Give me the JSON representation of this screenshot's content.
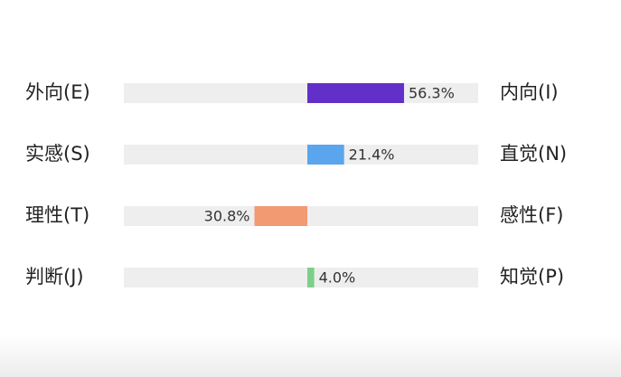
{
  "chart_data": {
    "type": "diverging-bar",
    "left_labels": [
      "外向(E)",
      "实感(S)",
      "理性(T)",
      "判断(J)"
    ],
    "right_labels": [
      "内向(I)",
      "直觉(N)",
      "感性(F)",
      "知觉(P)"
    ],
    "values": [
      56.3,
      21.4,
      30.8,
      4.0
    ],
    "value_labels": [
      "56.3%",
      "21.4%",
      "30.8%",
      "4.0%"
    ],
    "directions": [
      "right",
      "right",
      "left",
      "right"
    ],
    "colors": [
      "#6230c8",
      "#5aa5ee",
      "#f29a72",
      "#7ccf8a"
    ],
    "xlim": [
      0,
      100
    ]
  }
}
